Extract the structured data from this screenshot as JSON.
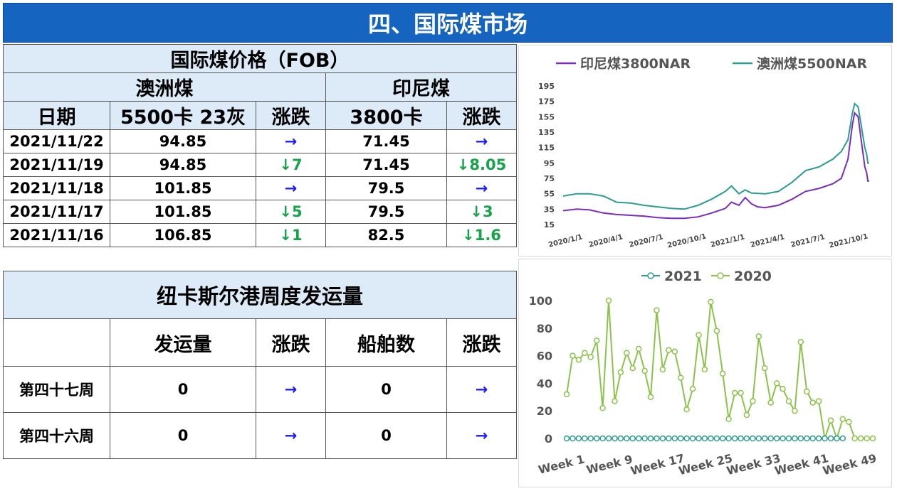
{
  "page_title": "四、国际煤市场",
  "price_table": {
    "title": "国际煤价格（FOB）",
    "group_au": "澳洲煤",
    "group_id": "印尼煤",
    "col_date": "日期",
    "col_au": "5500卡 23灰",
    "col_au_chg": "涨跌",
    "col_id": "3800卡",
    "col_id_chg": "涨跌",
    "rows": [
      {
        "date": "2021/11/22",
        "au": "94.85",
        "au_chg": "→",
        "au_dir": "flat",
        "id": "71.45",
        "id_chg": "→",
        "id_dir": "flat"
      },
      {
        "date": "2021/11/19",
        "au": "94.85",
        "au_chg": "↓7",
        "au_dir": "down",
        "id": "71.45",
        "id_chg": "↓8.05",
        "id_dir": "down"
      },
      {
        "date": "2021/11/18",
        "au": "101.85",
        "au_chg": "→",
        "au_dir": "flat",
        "id": "79.5",
        "id_chg": "→",
        "id_dir": "flat"
      },
      {
        "date": "2021/11/17",
        "au": "101.85",
        "au_chg": "↓5",
        "au_dir": "down",
        "id": "79.5",
        "id_chg": "↓3",
        "id_dir": "down"
      },
      {
        "date": "2021/11/16",
        "au": "106.85",
        "au_chg": "↓1",
        "au_dir": "down",
        "id": "82.5",
        "id_chg": "↓1.6",
        "id_dir": "down"
      }
    ]
  },
  "ship_table": {
    "title": "纽卡斯尔港周度发运量",
    "col_volume": "发运量",
    "col_volume_chg": "涨跌",
    "col_ships": "船舶数",
    "col_ships_chg": "涨跌",
    "rows": [
      {
        "week": "第四十七周",
        "volume": "0",
        "volume_chg": "→",
        "ships": "0",
        "ships_chg": "→"
      },
      {
        "week": "第四十六周",
        "volume": "0",
        "volume_chg": "→",
        "ships": "0",
        "ships_chg": "→"
      }
    ]
  },
  "colors": {
    "title_bg": "#1565C0",
    "header_bg": "#DCEBF7",
    "arrow_flat": "#1a1aff",
    "arrow_down": "#16a34a",
    "indo": "#7B2CBF",
    "aus": "#2A9D8F",
    "s2021": "#2A9D8F",
    "s2020": "#8BC34A"
  },
  "chart_data": [
    {
      "type": "line",
      "title": "",
      "legend_position": "top",
      "ylim": [
        15,
        195
      ],
      "yticks": [
        15,
        35,
        55,
        75,
        95,
        115,
        135,
        155,
        175,
        195
      ],
      "x_tick_labels": [
        "2020/1/1",
        "2020/4/1",
        "2020/7/1",
        "2020/10/1",
        "2021/1/1",
        "2021/4/1",
        "2021/7/1",
        "2021/10/1"
      ],
      "x_tick_dates": [
        "2020-01-01",
        "2020-04-01",
        "2020-07-01",
        "2020-10-01",
        "2021-01-01",
        "2021-04-01",
        "2021-07-01",
        "2021-10-01"
      ],
      "x_range": [
        "2020-01-01",
        "2021-11-22"
      ],
      "series": [
        {
          "name": "印尼煤3800NAR",
          "points": [
            [
              "2020-01-01",
              33
            ],
            [
              "2020-02-01",
              35
            ],
            [
              "2020-03-01",
              34
            ],
            [
              "2020-04-01",
              30
            ],
            [
              "2020-05-01",
              28
            ],
            [
              "2020-06-01",
              27
            ],
            [
              "2020-07-01",
              26
            ],
            [
              "2020-08-01",
              24
            ],
            [
              "2020-09-01",
              23
            ],
            [
              "2020-10-01",
              23
            ],
            [
              "2020-11-01",
              25
            ],
            [
              "2020-12-01",
              30
            ],
            [
              "2021-01-01",
              36
            ],
            [
              "2021-01-15",
              44
            ],
            [
              "2021-02-01",
              40
            ],
            [
              "2021-02-15",
              50
            ],
            [
              "2021-03-01",
              42
            ],
            [
              "2021-03-15",
              38
            ],
            [
              "2021-04-01",
              37
            ],
            [
              "2021-05-01",
              40
            ],
            [
              "2021-06-01",
              48
            ],
            [
              "2021-07-01",
              58
            ],
            [
              "2021-08-01",
              62
            ],
            [
              "2021-09-01",
              68
            ],
            [
              "2021-09-20",
              75
            ],
            [
              "2021-10-05",
              100
            ],
            [
              "2021-10-15",
              145
            ],
            [
              "2021-10-20",
              160
            ],
            [
              "2021-10-28",
              155
            ],
            [
              "2021-11-05",
              120
            ],
            [
              "2021-11-12",
              90
            ],
            [
              "2021-11-16",
              82.5
            ],
            [
              "2021-11-19",
              71.45
            ],
            [
              "2021-11-22",
              71.45
            ]
          ]
        },
        {
          "name": "澳洲煤5500NAR",
          "points": [
            [
              "2020-01-01",
              52
            ],
            [
              "2020-02-01",
              55
            ],
            [
              "2020-03-01",
              55
            ],
            [
              "2020-04-01",
              52
            ],
            [
              "2020-05-01",
              44
            ],
            [
              "2020-06-01",
              43
            ],
            [
              "2020-07-01",
              40
            ],
            [
              "2020-08-01",
              38
            ],
            [
              "2020-09-01",
              36
            ],
            [
              "2020-10-01",
              35
            ],
            [
              "2020-11-01",
              40
            ],
            [
              "2020-12-01",
              48
            ],
            [
              "2021-01-01",
              58
            ],
            [
              "2021-01-15",
              65
            ],
            [
              "2021-02-01",
              55
            ],
            [
              "2021-02-15",
              60
            ],
            [
              "2021-03-01",
              56
            ],
            [
              "2021-04-01",
              55
            ],
            [
              "2021-05-01",
              58
            ],
            [
              "2021-06-01",
              70
            ],
            [
              "2021-07-01",
              85
            ],
            [
              "2021-08-01",
              90
            ],
            [
              "2021-09-01",
              100
            ],
            [
              "2021-09-20",
              110
            ],
            [
              "2021-10-05",
              125
            ],
            [
              "2021-10-15",
              160
            ],
            [
              "2021-10-20",
              172
            ],
            [
              "2021-10-28",
              168
            ],
            [
              "2021-11-05",
              140
            ],
            [
              "2021-11-12",
              115
            ],
            [
              "2021-11-16",
              106.85
            ],
            [
              "2021-11-19",
              94.85
            ],
            [
              "2021-11-22",
              94.85
            ]
          ]
        }
      ]
    },
    {
      "type": "line",
      "title": "",
      "legend_position": "top",
      "ylim": [
        0,
        100
      ],
      "yticks": [
        0,
        20,
        40,
        60,
        80,
        100
      ],
      "x_tick_labels": [
        "Week 1",
        "Week 9",
        "Week 17",
        "Week 25",
        "Week 33",
        "Week 41",
        "Week 49"
      ],
      "x_tick_weeks": [
        1,
        9,
        17,
        25,
        33,
        41,
        49
      ],
      "weeks": [
        1,
        2,
        3,
        4,
        5,
        6,
        7,
        8,
        9,
        10,
        11,
        12,
        13,
        14,
        15,
        16,
        17,
        18,
        19,
        20,
        21,
        22,
        23,
        24,
        25,
        26,
        27,
        28,
        29,
        30,
        31,
        32,
        33,
        34,
        35,
        36,
        37,
        38,
        39,
        40,
        41,
        42,
        43,
        44,
        45,
        46,
        47,
        48,
        49,
        50,
        51,
        52
      ],
      "series": [
        {
          "name": "2021",
          "values": [
            0,
            0,
            0,
            0,
            0,
            0,
            0,
            0,
            0,
            0,
            0,
            0,
            0,
            0,
            0,
            0,
            0,
            0,
            0,
            0,
            0,
            0,
            0,
            0,
            0,
            0,
            0,
            0,
            0,
            0,
            0,
            0,
            0,
            0,
            0,
            0,
            0,
            0,
            0,
            0,
            0,
            0,
            0,
            0,
            0,
            0,
            0
          ]
        },
        {
          "name": "2020",
          "values": [
            32,
            60,
            57,
            62,
            59,
            71,
            22,
            100,
            27,
            48,
            62,
            51,
            65,
            49,
            30,
            93,
            50,
            64,
            63,
            44,
            21,
            36,
            75,
            50,
            99,
            78,
            47,
            14,
            33,
            33,
            17,
            27,
            74,
            51,
            26,
            40,
            36,
            27,
            20,
            70,
            34,
            26,
            27,
            0,
            13,
            0,
            14,
            12,
            0,
            0,
            0,
            0
          ]
        }
      ]
    }
  ]
}
